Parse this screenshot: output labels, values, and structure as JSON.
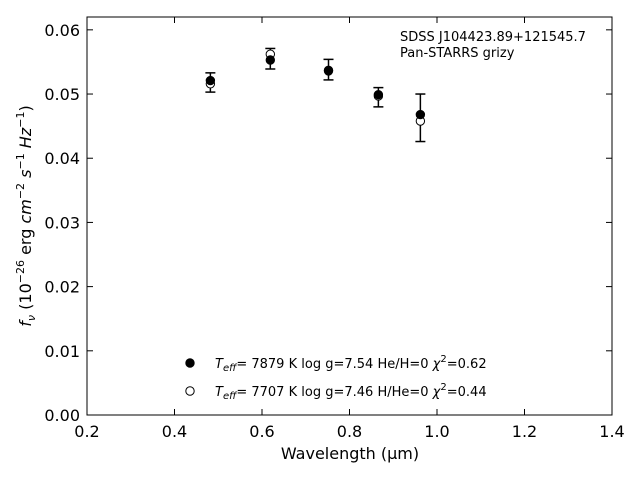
{
  "chart_data": {
    "type": "scatter",
    "xlabel": "Wavelength (μm)",
    "ylabel": "f_ν (10^-26 erg cm^-2 s^-1 Hz^-1)",
    "xlim": [
      0.2,
      1.4
    ],
    "ylim": [
      0.0,
      0.062
    ],
    "xticks": [
      "0.2",
      "0.4",
      "0.6",
      "0.8",
      "1.0",
      "1.2",
      "1.4"
    ],
    "yticks": [
      "0.00",
      "0.01",
      "0.02",
      "0.03",
      "0.04",
      "0.05",
      "0.06"
    ],
    "grid": false,
    "annotation": {
      "line1": "SDSS J104423.89+121545.7",
      "line2": "Pan-STARRS grizy"
    },
    "observed": {
      "x": [
        0.482,
        0.619,
        0.752,
        0.866,
        0.962
      ],
      "y": [
        0.0518,
        0.0555,
        0.0538,
        0.0495,
        0.0463
      ],
      "yerr": [
        0.0015,
        0.0016,
        0.0016,
        0.0015,
        0.0037
      ]
    },
    "series": [
      {
        "marker": "filled-circle",
        "x": [
          0.482,
          0.619,
          0.752,
          0.866,
          0.962
        ],
        "y": [
          0.0521,
          0.0553,
          0.0537,
          0.0499,
          0.0468
        ],
        "legend_label": "Teff=  7879 K  log g=7.54  He/H=0  χ2=0.62"
      },
      {
        "marker": "open-circle",
        "x": [
          0.482,
          0.619,
          0.752,
          0.866,
          0.962
        ],
        "y": [
          0.0516,
          0.0562,
          0.0536,
          0.0497,
          0.0458
        ],
        "legend_label": "Teff=  7707 K  log g=7.46  H/He=0  χ2=0.44"
      }
    ],
    "legend": {
      "placement": "lower-center",
      "entries": [
        {
          "teff": "7879 K",
          "logg": "log g=7.54",
          "comp": "He/H=0",
          "chi2": "=0.62"
        },
        {
          "teff": "7707 K",
          "logg": "log g=7.46",
          "comp": "H/He=0",
          "chi2": "=0.44"
        }
      ]
    }
  }
}
